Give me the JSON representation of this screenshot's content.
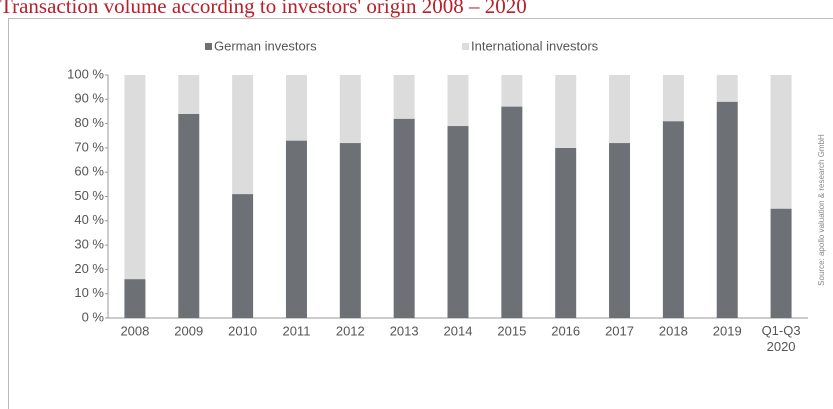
{
  "chart_data": {
    "type": "stacked_bar",
    "title": "Transaction volume according to investors' origin 2008 – 2020",
    "source": "Source: apollo valuation & research GmbH",
    "categories": [
      "2008",
      "2009",
      "2010",
      "2011",
      "2012",
      "2013",
      "2014",
      "2015",
      "2016",
      "2017",
      "2018",
      "2019",
      "Q1-Q3 2020"
    ],
    "series": [
      {
        "name": "German investors",
        "color": "#6d7074",
        "values": [
          16,
          84,
          51,
          73,
          72,
          82,
          79,
          87,
          70,
          72,
          81,
          89,
          45
        ]
      },
      {
        "name": "International investors",
        "color": "#dcdcdc",
        "values": [
          84,
          16,
          49,
          27,
          28,
          18,
          21,
          13,
          30,
          28,
          19,
          11,
          55
        ]
      }
    ],
    "ylim": [
      0,
      100
    ],
    "yticks": [
      {
        "value": 0,
        "label": "0 %"
      },
      {
        "value": 10,
        "label": "10 %"
      },
      {
        "value": 20,
        "label": "20 %"
      },
      {
        "value": 30,
        "label": "30 %"
      },
      {
        "value": 40,
        "label": "40 %"
      },
      {
        "value": 50,
        "label": "50 %"
      },
      {
        "value": 60,
        "label": "60 %"
      },
      {
        "value": 70,
        "label": "70 %"
      },
      {
        "value": 80,
        "label": "80 %"
      },
      {
        "value": 90,
        "label": "90 %"
      },
      {
        "value": 100,
        "label": "100 %"
      }
    ],
    "legend": "top"
  }
}
